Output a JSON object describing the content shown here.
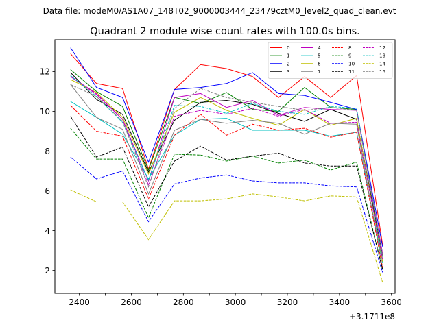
{
  "suptitle": "Data file: modeM0/AS1A07_148T02_9000003444_23479cztM0_level2_quad_clean.evt",
  "chart_data": {
    "type": "line",
    "title": "Quadrant 2 module wise count rates with 100.0s bins.",
    "xlabel": "",
    "ylabel": "",
    "x_offset_label": "+3.1711e8",
    "xlim": [
      2306,
      3614
    ],
    "ylim": [
      0.85,
      13.6
    ],
    "xticks": [
      2400,
      2500,
      2600,
      2700,
      2800,
      2900,
      3000,
      3100,
      3200,
      3300,
      3400,
      3500,
      3600
    ],
    "xtick_labels": [
      "2400",
      "",
      "2600",
      "",
      "2800",
      "",
      "3000",
      "",
      "3200",
      "",
      "3400",
      "",
      "3600"
    ],
    "yticks": [
      2,
      4,
      6,
      8,
      10,
      12
    ],
    "ytick_labels": [
      "2",
      "4",
      "6",
      "8",
      "10",
      "12"
    ],
    "grid": false,
    "legend_position": "top-right",
    "legend_columns": 4,
    "x": [
      2366,
      2466,
      2566,
      2666,
      2766,
      2866,
      2966,
      3066,
      3166,
      3266,
      3366,
      3466,
      3566
    ],
    "series": [
      {
        "name": "0",
        "color": "#ff0000",
        "dash": "solid",
        "values": [
          12.9,
          11.4,
          11.15,
          7.1,
          11.1,
          12.35,
          12.15,
          11.75,
          10.7,
          11.75,
          10.7,
          11.8,
          3.3
        ]
      },
      {
        "name": "1",
        "color": "#008000",
        "dash": "solid",
        "values": [
          12.1,
          11.0,
          10.25,
          7.05,
          10.7,
          10.4,
          10.95,
          10.1,
          10.0,
          11.2,
          10.2,
          10.1,
          2.8
        ]
      },
      {
        "name": "2",
        "color": "#0000ff",
        "dash": "solid",
        "values": [
          13.2,
          11.2,
          10.7,
          7.45,
          11.1,
          11.2,
          11.4,
          11.95,
          10.9,
          10.8,
          10.45,
          10.1,
          3.2
        ]
      },
      {
        "name": "3",
        "color": "#000000",
        "dash": "solid",
        "values": [
          11.95,
          10.6,
          9.85,
          6.95,
          9.55,
          10.45,
          10.55,
          10.35,
          9.9,
          9.5,
          10.1,
          9.6,
          2.7
        ]
      },
      {
        "name": "4",
        "color": "#bf00bf",
        "dash": "solid",
        "values": [
          11.75,
          10.85,
          9.6,
          6.5,
          10.7,
          10.9,
          10.2,
          10.55,
          9.8,
          10.2,
          10.1,
          10.05,
          2.85
        ]
      },
      {
        "name": "5",
        "color": "#00bfbf",
        "dash": "solid",
        "values": [
          10.5,
          9.7,
          8.85,
          6.6,
          8.8,
          9.6,
          9.65,
          9.05,
          9.05,
          9.05,
          8.75,
          8.95,
          2.4
        ]
      },
      {
        "name": "6",
        "color": "#bfbf00",
        "dash": "solid",
        "values": [
          11.6,
          10.95,
          9.7,
          6.85,
          9.95,
          10.7,
          10.05,
          9.65,
          9.3,
          10.1,
          9.3,
          9.65,
          2.45
        ]
      },
      {
        "name": "7",
        "color": "#808080",
        "dash": "solid",
        "values": [
          11.35,
          9.7,
          9.1,
          5.85,
          9.05,
          9.6,
          9.4,
          9.55,
          9.4,
          8.85,
          9.4,
          9.35,
          2.1
        ]
      },
      {
        "name": "8",
        "color": "#ff0000",
        "dash": "dashed",
        "values": [
          10.3,
          9.0,
          8.75,
          5.6,
          8.8,
          9.85,
          8.8,
          9.35,
          9.05,
          9.15,
          8.7,
          8.95,
          2.15
        ]
      },
      {
        "name": "9",
        "color": "#008000",
        "dash": "dashed",
        "values": [
          9.15,
          7.6,
          7.6,
          4.65,
          7.85,
          7.8,
          7.5,
          7.75,
          7.4,
          7.55,
          7.05,
          7.45,
          2.05
        ]
      },
      {
        "name": "10",
        "color": "#0000ff",
        "dash": "dashed",
        "values": [
          7.7,
          6.6,
          7.0,
          4.45,
          6.35,
          6.65,
          6.8,
          6.5,
          6.4,
          6.4,
          6.25,
          6.2,
          1.9
        ]
      },
      {
        "name": "11",
        "color": "#000000",
        "dash": "dashed",
        "values": [
          9.75,
          7.7,
          8.2,
          5.2,
          7.5,
          8.25,
          7.55,
          7.75,
          7.9,
          7.4,
          7.25,
          7.25,
          2.05
        ]
      },
      {
        "name": "12",
        "color": "#bf00bf",
        "dash": "dashed",
        "values": [
          11.75,
          10.9,
          9.6,
          6.3,
          9.75,
          10.05,
          9.85,
          10.15,
          9.75,
          10.1,
          9.4,
          9.45,
          2.55
        ]
      },
      {
        "name": "13",
        "color": "#00bfbf",
        "dash": "dashed",
        "values": [
          11.8,
          10.75,
          9.45,
          6.55,
          10.3,
          10.25,
          9.9,
          10.4,
          10.0,
          9.85,
          10.25,
          10.15,
          2.7
        ]
      },
      {
        "name": "14",
        "color": "#bfbf00",
        "dash": "dashed",
        "values": [
          6.05,
          5.45,
          5.45,
          3.55,
          5.5,
          5.5,
          5.6,
          5.85,
          5.7,
          5.5,
          5.75,
          5.7,
          1.4
        ]
      },
      {
        "name": "15",
        "color": "#808080",
        "dash": "dashed",
        "values": [
          11.35,
          10.75,
          9.5,
          6.2,
          10.15,
          11.15,
          10.7,
          10.45,
          10.25,
          10.05,
          10.2,
          10.05,
          2.75
        ]
      }
    ]
  }
}
